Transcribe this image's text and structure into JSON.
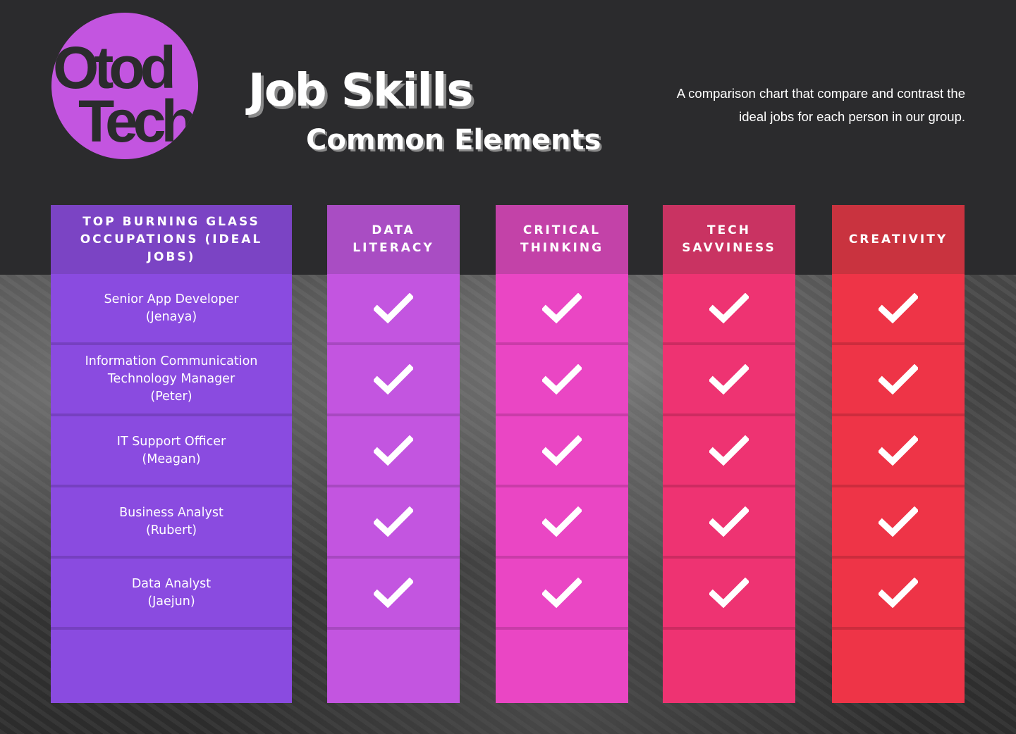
{
  "logo": {
    "line1": "Otod",
    "line2": "Tech",
    "color": "#c355e0"
  },
  "header": {
    "title": "Job Skills",
    "subtitle": "Common Elements",
    "description": "A comparison chart that compare and contrast the ideal jobs for each person in our group."
  },
  "table": {
    "first_column": {
      "header": "TOP BURNING GLASS OCCUPATIONS (IDEAL JOBS)",
      "color": "#8a4be0",
      "header_color": "#7b44c4"
    },
    "rows": [
      {
        "job": "Senior App Developer",
        "person": "(Jenaya)"
      },
      {
        "job": "Information Communication Technology Manager",
        "person": "(Peter)"
      },
      {
        "job": "IT Support Officer",
        "person": "(Meagan)"
      },
      {
        "job": "Business Analyst",
        "person": "(Rubert)"
      },
      {
        "job": "Data Analyst",
        "person": "(Jaejun)"
      }
    ],
    "skills": [
      {
        "header": "DATA LITERACY",
        "color": "#c355e0",
        "header_color": "#a94dc3",
        "checks": [
          true,
          true,
          true,
          true,
          true
        ]
      },
      {
        "header": "CRITICAL THINKING",
        "color": "#ea46c4",
        "header_color": "#c342a8",
        "checks": [
          true,
          true,
          true,
          true,
          true
        ]
      },
      {
        "header": "TECH SAVVINESS",
        "color": "#ee3372",
        "header_color": "#c93362",
        "checks": [
          true,
          true,
          true,
          true,
          true
        ]
      },
      {
        "header": "CREATIVITY",
        "color": "#ee3447",
        "header_color": "#c9333f",
        "checks": [
          true,
          true,
          true,
          true,
          true
        ]
      }
    ]
  },
  "icons": {
    "check": "check-icon"
  }
}
